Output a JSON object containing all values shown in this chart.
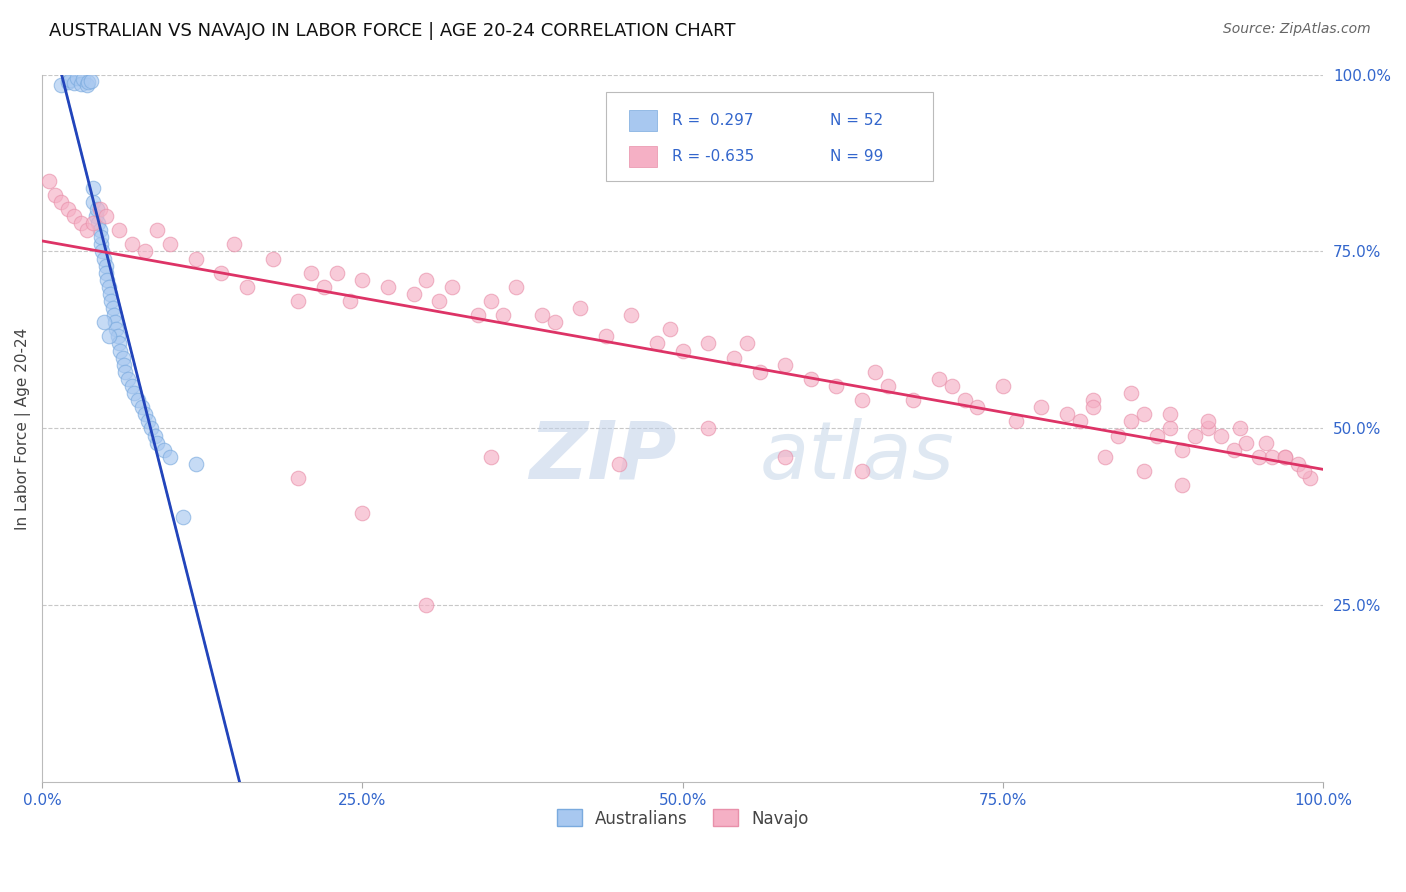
{
  "title": "AUSTRALIAN VS NAVAJO IN LABOR FORCE | AGE 20-24 CORRELATION CHART",
  "source": "Source: ZipAtlas.com",
  "ylabel": "In Labor Force | Age 20-24",
  "xlim": [
    0.0,
    1.0
  ],
  "ylim": [
    0.0,
    1.0
  ],
  "xtick_vals": [
    0.0,
    0.25,
    0.5,
    0.75,
    1.0
  ],
  "xtick_labels": [
    "0.0%",
    "25.0%",
    "50.0%",
    "75.0%",
    "100.0%"
  ],
  "ytick_vals_right": [
    1.0,
    0.75,
    0.5,
    0.25
  ],
  "ytick_labels_right": [
    "100.0%",
    "75.0%",
    "50.0%",
    "25.0%"
  ],
  "grid_color": "#c8c8c8",
  "background_color": "#ffffff",
  "title_color": "#111111",
  "source_color": "#666666",
  "blue_fill_color": "#a8c8f0",
  "blue_edge_color": "#7aaade",
  "pink_fill_color": "#f5b0c5",
  "pink_edge_color": "#e890aa",
  "blue_line_color": "#2244bb",
  "pink_line_color": "#dd3366",
  "blue_dash_color": "#99bce0",
  "tick_color": "#3366cc",
  "axis_label_color": "#444444",
  "watermark_color": "#c5d8ee",
  "R_blue": 0.297,
  "N_blue": 52,
  "R_pink": -0.635,
  "N_pink": 99,
  "blue_x": [
    0.015,
    0.02,
    0.022,
    0.025,
    0.027,
    0.03,
    0.032,
    0.035,
    0.036,
    0.038,
    0.04,
    0.04,
    0.042,
    0.043,
    0.044,
    0.045,
    0.046,
    0.046,
    0.047,
    0.048,
    0.05,
    0.05,
    0.051,
    0.052,
    0.053,
    0.054,
    0.055,
    0.056,
    0.057,
    0.058,
    0.059,
    0.06,
    0.061,
    0.063,
    0.064,
    0.065,
    0.067,
    0.07,
    0.072,
    0.075,
    0.078,
    0.08,
    0.083,
    0.085,
    0.088,
    0.09,
    0.095,
    0.1,
    0.11,
    0.12,
    0.048,
    0.052
  ],
  "blue_y": [
    0.985,
    0.99,
    0.992,
    0.988,
    0.995,
    0.987,
    0.993,
    0.985,
    0.989,
    0.991,
    0.82,
    0.84,
    0.8,
    0.81,
    0.79,
    0.78,
    0.76,
    0.77,
    0.75,
    0.74,
    0.73,
    0.72,
    0.71,
    0.7,
    0.69,
    0.68,
    0.67,
    0.66,
    0.65,
    0.64,
    0.63,
    0.62,
    0.61,
    0.6,
    0.59,
    0.58,
    0.57,
    0.56,
    0.55,
    0.54,
    0.53,
    0.52,
    0.51,
    0.5,
    0.49,
    0.48,
    0.47,
    0.46,
    0.375,
    0.45,
    0.65,
    0.63
  ],
  "pink_x": [
    0.005,
    0.01,
    0.015,
    0.02,
    0.025,
    0.03,
    0.035,
    0.04,
    0.045,
    0.05,
    0.06,
    0.07,
    0.08,
    0.09,
    0.1,
    0.12,
    0.14,
    0.15,
    0.16,
    0.18,
    0.2,
    0.21,
    0.22,
    0.23,
    0.24,
    0.25,
    0.27,
    0.29,
    0.3,
    0.31,
    0.32,
    0.34,
    0.35,
    0.36,
    0.37,
    0.39,
    0.4,
    0.42,
    0.44,
    0.46,
    0.48,
    0.49,
    0.5,
    0.52,
    0.54,
    0.55,
    0.56,
    0.58,
    0.6,
    0.62,
    0.64,
    0.65,
    0.66,
    0.68,
    0.7,
    0.71,
    0.72,
    0.73,
    0.75,
    0.76,
    0.78,
    0.8,
    0.81,
    0.82,
    0.84,
    0.85,
    0.86,
    0.87,
    0.88,
    0.89,
    0.9,
    0.91,
    0.92,
    0.93,
    0.94,
    0.95,
    0.96,
    0.97,
    0.98,
    0.99,
    0.35,
    0.45,
    0.52,
    0.58,
    0.64,
    0.2,
    0.25,
    0.3,
    0.82,
    0.85,
    0.88,
    0.91,
    0.935,
    0.955,
    0.97,
    0.985,
    0.83,
    0.86,
    0.89
  ],
  "pink_y": [
    0.85,
    0.83,
    0.82,
    0.81,
    0.8,
    0.79,
    0.78,
    0.79,
    0.81,
    0.8,
    0.78,
    0.76,
    0.75,
    0.78,
    0.76,
    0.74,
    0.72,
    0.76,
    0.7,
    0.74,
    0.68,
    0.72,
    0.7,
    0.72,
    0.68,
    0.71,
    0.7,
    0.69,
    0.71,
    0.68,
    0.7,
    0.66,
    0.68,
    0.66,
    0.7,
    0.66,
    0.65,
    0.67,
    0.63,
    0.66,
    0.62,
    0.64,
    0.61,
    0.62,
    0.6,
    0.62,
    0.58,
    0.59,
    0.57,
    0.56,
    0.54,
    0.58,
    0.56,
    0.54,
    0.57,
    0.56,
    0.54,
    0.53,
    0.56,
    0.51,
    0.53,
    0.52,
    0.51,
    0.54,
    0.49,
    0.51,
    0.52,
    0.49,
    0.5,
    0.47,
    0.49,
    0.5,
    0.49,
    0.47,
    0.48,
    0.46,
    0.46,
    0.46,
    0.45,
    0.43,
    0.46,
    0.45,
    0.5,
    0.46,
    0.44,
    0.43,
    0.38,
    0.25,
    0.53,
    0.55,
    0.52,
    0.51,
    0.5,
    0.48,
    0.46,
    0.44,
    0.46,
    0.44,
    0.42
  ]
}
